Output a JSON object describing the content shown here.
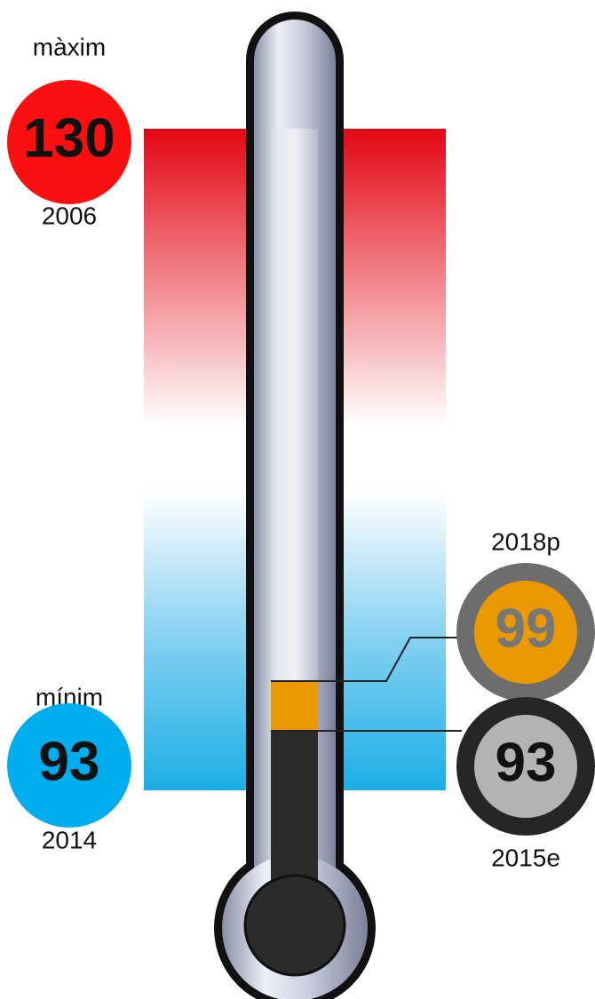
{
  "maximum": {
    "label": "màxim",
    "value": 130,
    "year": "2006"
  },
  "minimum": {
    "label": "mínim",
    "value": 93,
    "year": "2014"
  },
  "forecast": {
    "year": "2018p",
    "value": 99
  },
  "estimate": {
    "year": "2015e",
    "value": 93
  }
}
